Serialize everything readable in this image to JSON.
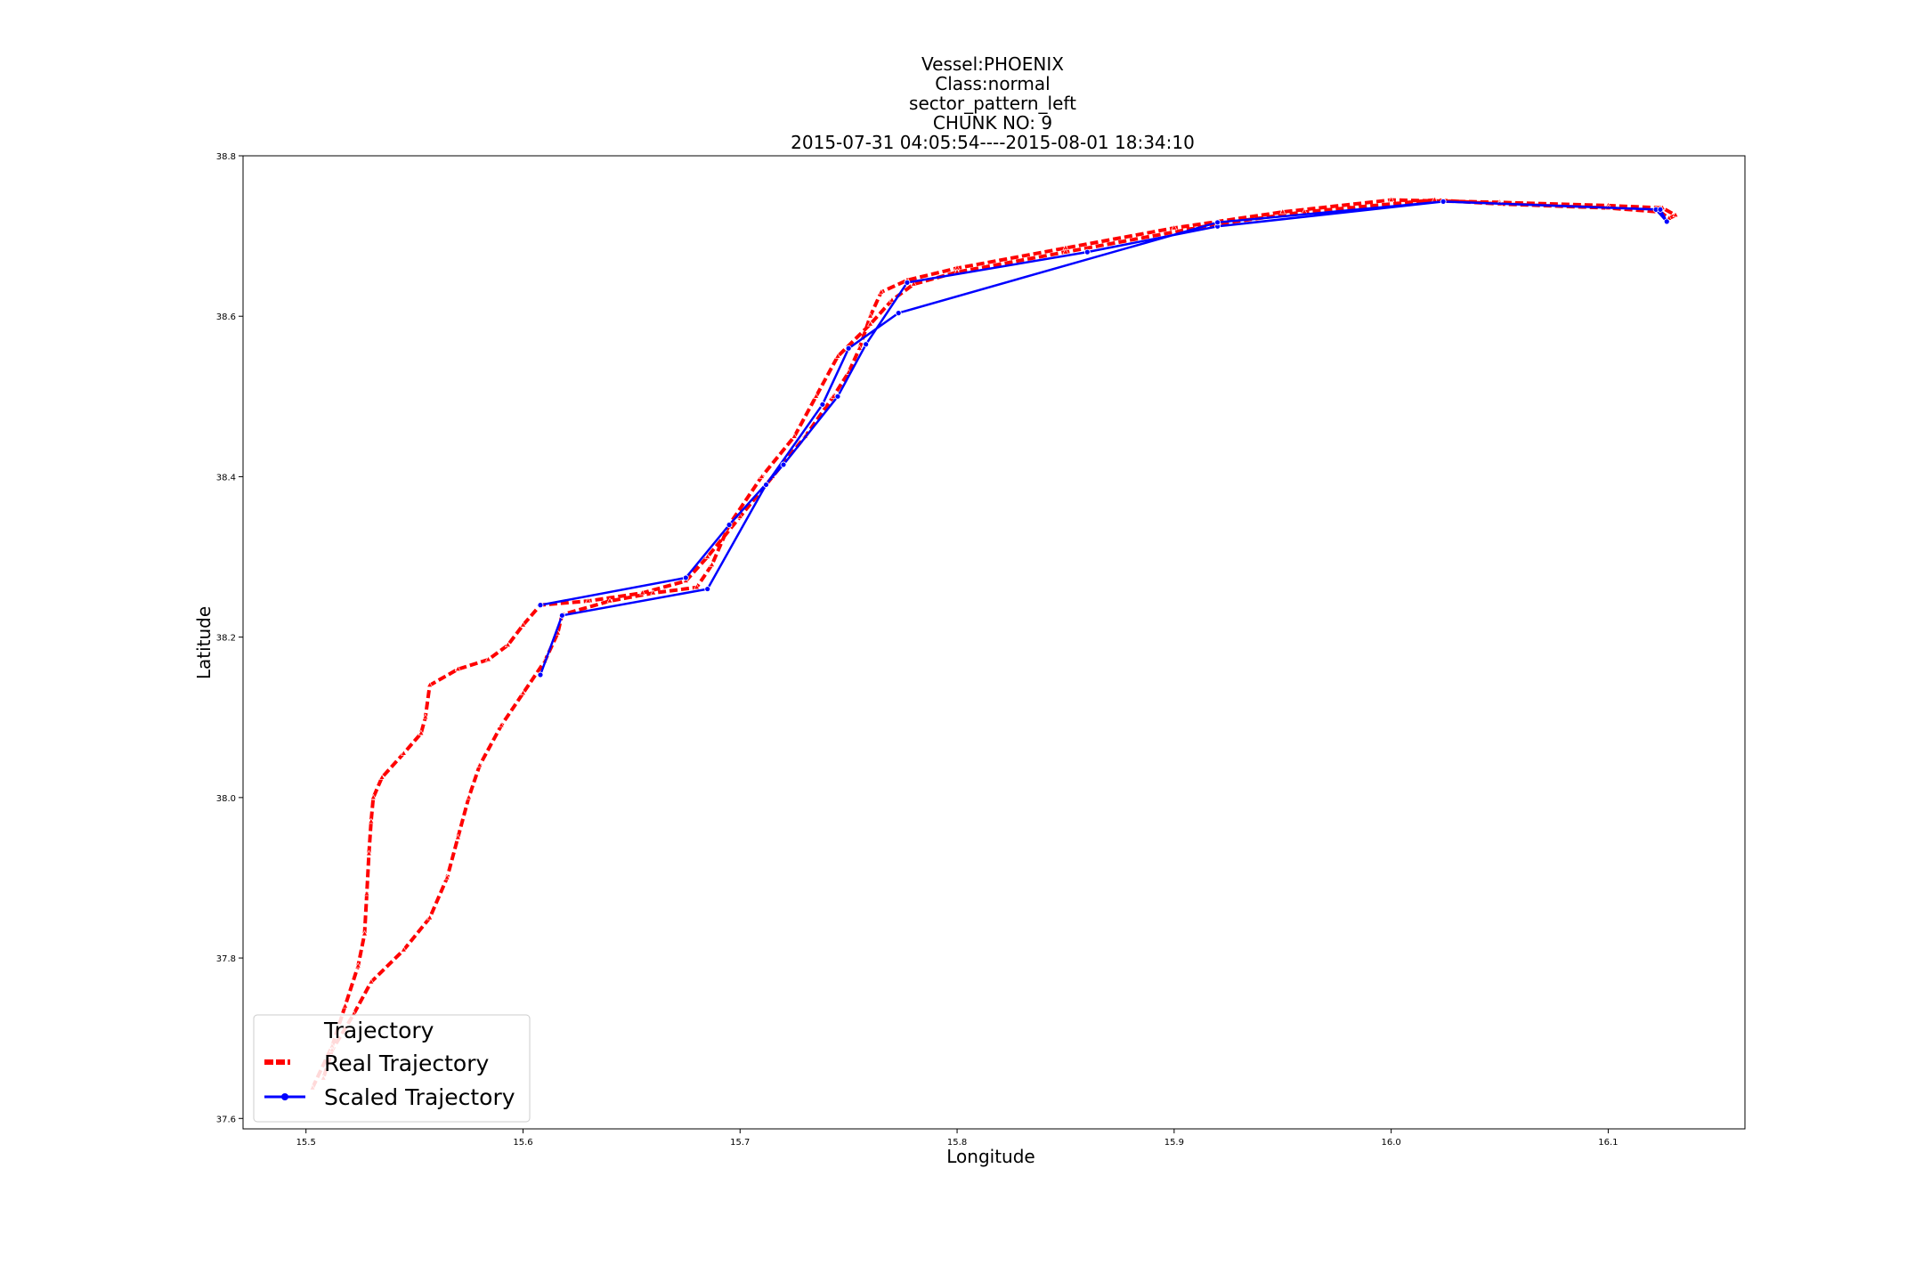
{
  "chart_data": {
    "type": "line",
    "title_lines": [
      "Vessel:PHOENIX",
      "Class:normal",
      "sector_pattern_left",
      "CHUNK NO: 9",
      "2015-07-31 04:05:54----2015-08-01 18:34:10"
    ],
    "xlabel": "Longitude",
    "ylabel": "Latitude",
    "xlim": [
      15.471,
      16.163
    ],
    "ylim": [
      37.587,
      38.8
    ],
    "x_ticks": [
      15.5,
      15.6,
      15.7,
      15.8,
      15.9,
      16.0,
      16.1
    ],
    "x_tick_labels": [
      "15.5",
      "15.6",
      "15.7",
      "15.8",
      "15.9",
      "16.0",
      "16.1"
    ],
    "y_ticks": [
      37.6,
      37.8,
      38.0,
      38.2,
      38.4,
      38.6,
      38.8
    ],
    "y_tick_labels": [
      "37.6",
      "37.8",
      "38.0",
      "38.2",
      "38.4",
      "38.6",
      "38.8"
    ],
    "legend": {
      "title": "Trajectory",
      "position": "lower-left",
      "entries": [
        "Real Trajectory",
        "Scaled Trajectory"
      ]
    },
    "series": [
      {
        "name": "Real Trajectory",
        "color": "#ff0000",
        "style": "dashed-triangle-markers",
        "points": [
          [
            15.503,
            37.638
          ],
          [
            15.512,
            37.69
          ],
          [
            15.518,
            37.74
          ],
          [
            15.524,
            37.79
          ],
          [
            15.527,
            37.83
          ],
          [
            15.528,
            37.88
          ],
          [
            15.529,
            37.93
          ],
          [
            15.53,
            37.97
          ],
          [
            15.531,
            38.0
          ],
          [
            15.535,
            38.025
          ],
          [
            15.545,
            38.055
          ],
          [
            15.553,
            38.08
          ],
          [
            15.555,
            38.1
          ],
          [
            15.557,
            38.14
          ],
          [
            15.57,
            38.16
          ],
          [
            15.584,
            38.172
          ],
          [
            15.593,
            38.19
          ],
          [
            15.6,
            38.215
          ],
          [
            15.608,
            38.24
          ],
          [
            15.63,
            38.245
          ],
          [
            15.655,
            38.255
          ],
          [
            15.675,
            38.27
          ],
          [
            15.685,
            38.3
          ],
          [
            15.7,
            38.35
          ],
          [
            15.715,
            38.4
          ],
          [
            15.73,
            38.45
          ],
          [
            15.743,
            38.5
          ],
          [
            15.75,
            38.53
          ],
          [
            15.755,
            38.56
          ],
          [
            15.76,
            38.6
          ],
          [
            15.765,
            38.63
          ],
          [
            15.777,
            38.645
          ],
          [
            15.8,
            38.66
          ],
          [
            15.85,
            38.685
          ],
          [
            15.9,
            38.71
          ],
          [
            15.95,
            38.73
          ],
          [
            16.0,
            38.745
          ],
          [
            16.05,
            38.742
          ],
          [
            16.1,
            38.738
          ],
          [
            16.125,
            38.735
          ],
          [
            16.131,
            38.726
          ],
          [
            16.128,
            38.722
          ],
          [
            16.124,
            38.73
          ],
          [
            16.1,
            38.735
          ],
          [
            16.05,
            38.74
          ],
          [
            16.02,
            38.745
          ],
          [
            15.96,
            38.73
          ],
          [
            15.92,
            38.715
          ],
          [
            15.85,
            38.68
          ],
          [
            15.8,
            38.655
          ],
          [
            15.78,
            38.64
          ],
          [
            15.77,
            38.62
          ],
          [
            15.76,
            38.59
          ],
          [
            15.745,
            38.55
          ],
          [
            15.735,
            38.5
          ],
          [
            15.725,
            38.45
          ],
          [
            15.71,
            38.4
          ],
          [
            15.695,
            38.34
          ],
          [
            15.687,
            38.29
          ],
          [
            15.68,
            38.262
          ],
          [
            15.66,
            38.255
          ],
          [
            15.64,
            38.245
          ],
          [
            15.618,
            38.228
          ],
          [
            15.616,
            38.205
          ],
          [
            15.61,
            38.17
          ],
          [
            15.6,
            38.13
          ],
          [
            15.59,
            38.09
          ],
          [
            15.58,
            38.04
          ],
          [
            15.575,
            38.0
          ],
          [
            15.57,
            37.95
          ],
          [
            15.565,
            37.9
          ],
          [
            15.557,
            37.85
          ],
          [
            15.545,
            37.81
          ],
          [
            15.53,
            37.77
          ],
          [
            15.522,
            37.73
          ],
          [
            15.512,
            37.685
          ],
          [
            15.508,
            37.65
          ]
        ]
      },
      {
        "name": "Scaled Trajectory",
        "color": "#0000ff",
        "style": "solid-dot-markers",
        "points": [
          [
            15.608,
            38.24
          ],
          [
            15.675,
            38.274
          ],
          [
            15.695,
            38.34
          ],
          [
            15.72,
            38.415
          ],
          [
            15.745,
            38.5
          ],
          [
            15.758,
            38.565
          ],
          [
            15.777,
            38.642
          ],
          [
            15.86,
            38.68
          ],
          [
            15.92,
            38.712
          ],
          [
            16.024,
            38.743
          ],
          [
            16.122,
            38.733
          ],
          [
            16.127,
            38.718
          ],
          [
            16.124,
            38.733
          ],
          [
            16.024,
            38.743
          ],
          [
            15.92,
            38.717
          ],
          [
            15.773,
            38.604
          ],
          [
            15.75,
            38.56
          ],
          [
            15.738,
            38.49
          ],
          [
            15.712,
            38.39
          ],
          [
            15.685,
            38.26
          ],
          [
            15.618,
            38.227
          ],
          [
            15.608,
            38.153
          ]
        ]
      }
    ]
  }
}
